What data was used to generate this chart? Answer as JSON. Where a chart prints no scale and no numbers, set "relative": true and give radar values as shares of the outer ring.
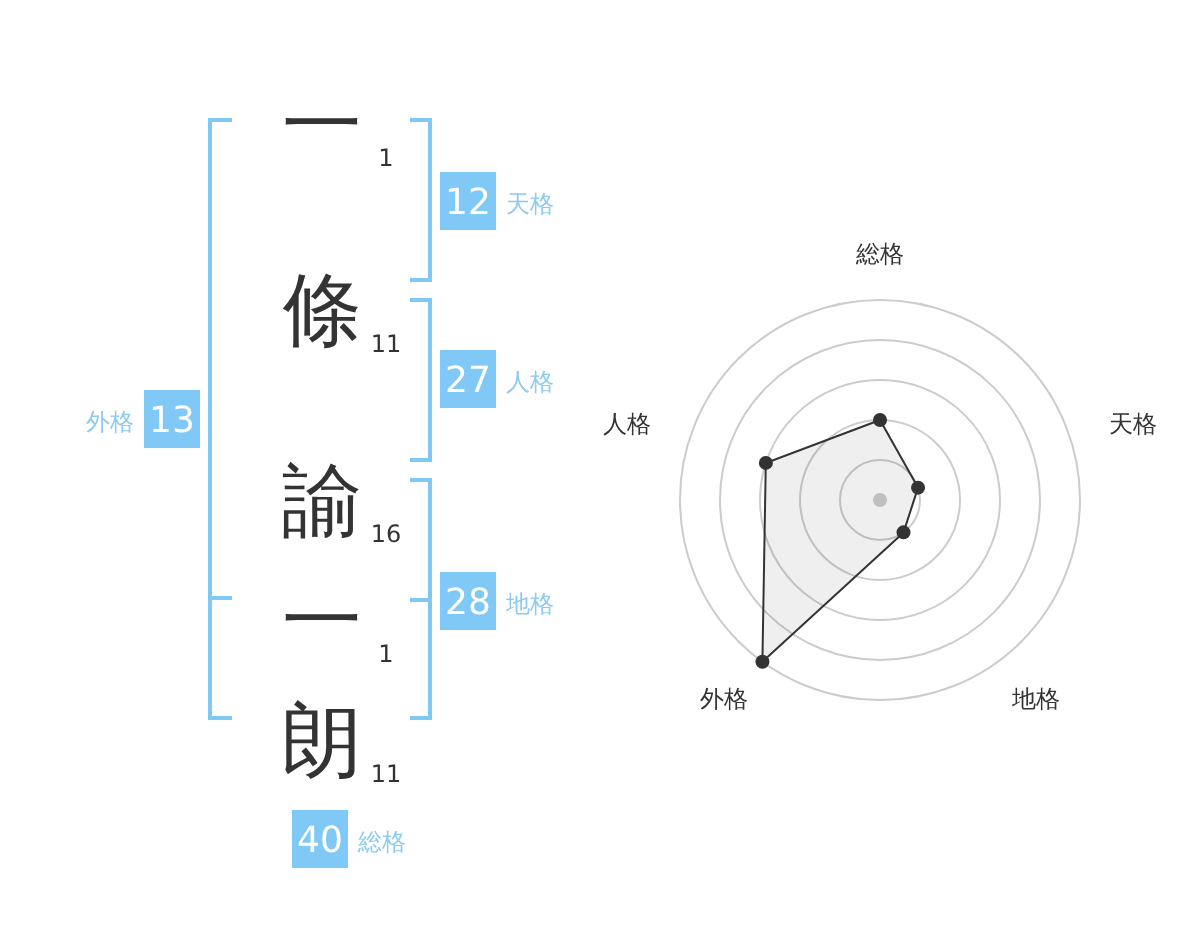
{
  "chart_data": [
    {
      "type": "other",
      "annotations": [
        "一",
        "1",
        "條",
        "11",
        "諭",
        "16",
        "一",
        "1",
        "朗",
        "11",
        "12",
        "天格",
        "27",
        "人格",
        "28",
        "地格",
        "13",
        "外格",
        "40",
        "総格"
      ]
    },
    {
      "type": "radar",
      "categories": [
        "総格",
        "天格",
        "地格",
        "外格",
        "人格"
      ],
      "relative": true,
      "series": [
        {
          "color": "#333333",
          "values": [
            0.4,
            0.2,
            0.2,
            1.0,
            0.6
          ]
        }
      ]
    }
  ]
}
